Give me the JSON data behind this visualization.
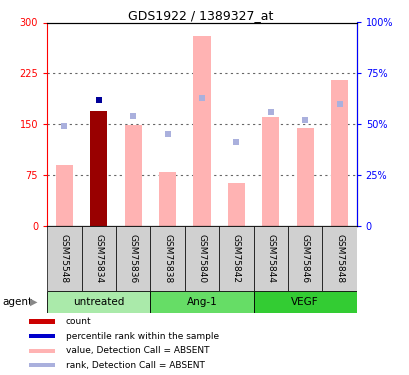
{
  "title": "GDS1922 / 1389327_at",
  "samples": [
    "GSM75548",
    "GSM75834",
    "GSM75836",
    "GSM75838",
    "GSM75840",
    "GSM75842",
    "GSM75844",
    "GSM75846",
    "GSM75848"
  ],
  "pink_bars": [
    90,
    170,
    148,
    80,
    280,
    63,
    160,
    145,
    215
  ],
  "red_bar_idx": 1,
  "red_bar_val": 170,
  "blue_sq_idx": [
    1
  ],
  "blue_sq_val": [
    62
  ],
  "light_blue_vals": [
    49,
    62,
    54,
    45,
    63,
    41,
    56,
    52,
    60
  ],
  "ylim_left": [
    0,
    300
  ],
  "ylim_right": [
    0,
    100
  ],
  "yticks_left": [
    0,
    75,
    150,
    225,
    300
  ],
  "ytick_labels_left": [
    "0",
    "75",
    "150",
    "225",
    "300"
  ],
  "yticks_right": [
    0,
    25,
    50,
    75,
    100
  ],
  "ytick_labels_right": [
    "0",
    "25%",
    "50%",
    "75%",
    "100%"
  ],
  "groups": [
    {
      "label": "untreated",
      "start": 0,
      "end": 3,
      "color": "#aaeaaa"
    },
    {
      "label": "Ang-1",
      "start": 3,
      "end": 6,
      "color": "#66dd66"
    },
    {
      "label": "VEGF",
      "start": 6,
      "end": 9,
      "color": "#33cc33"
    }
  ],
  "pink_color": "#ffb3b3",
  "red_color": "#990000",
  "blue_color": "#000099",
  "light_blue_color": "#aab0dd",
  "bar_width": 0.5,
  "legend_colors": [
    "#cc0000",
    "#0000cc",
    "#ffb3b3",
    "#aab0dd"
  ],
  "legend_labels": [
    "count",
    "percentile rank within the sample",
    "value, Detection Call = ABSENT",
    "rank, Detection Call = ABSENT"
  ],
  "agent_label": "agent",
  "grid_color": "black",
  "grid_alpha": 0.6,
  "title_fontsize": 9,
  "tick_fontsize": 7,
  "label_fontsize": 6.5,
  "legend_fontsize": 6.5,
  "group_fontsize": 7.5
}
